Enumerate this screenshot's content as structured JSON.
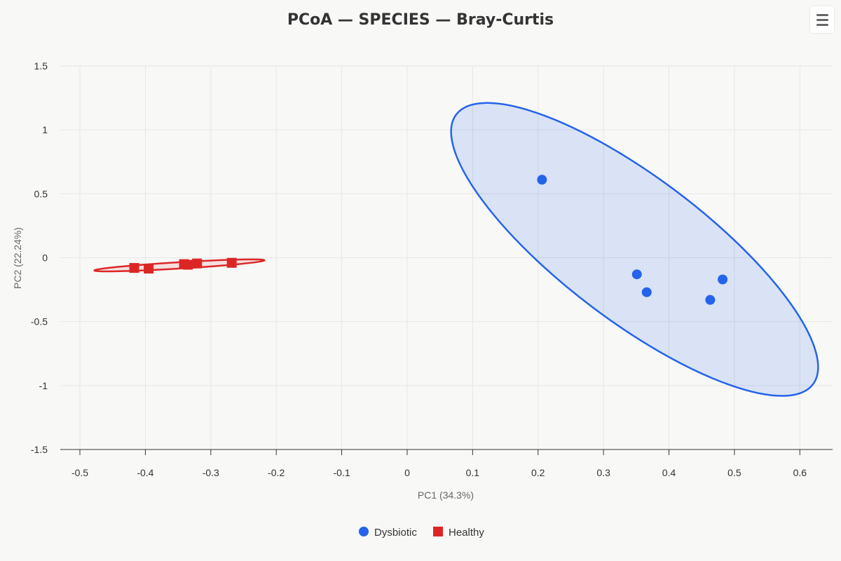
{
  "chart_data": {
    "type": "scatter",
    "title": "PCoA — SPECIES — Bray-Curtis",
    "xlabel": "PC1 (34.3%)",
    "ylabel": "PC2 (22.24%)",
    "xlim": [
      -0.53,
      0.65
    ],
    "ylim": [
      -1.5,
      1.5
    ],
    "xticks": [
      "-0.5",
      "-0.4",
      "-0.3",
      "-0.2",
      "-0.1",
      "0",
      "0.1",
      "0.2",
      "0.3",
      "0.4",
      "0.5",
      "0.6"
    ],
    "yticks": [
      "1.5",
      "1",
      "0.5",
      "0",
      "-0.5",
      "-1",
      "-1.5"
    ],
    "grid": true,
    "legend_position": "bottom-center",
    "series": [
      {
        "name": "Dysbiotic",
        "marker": "circle",
        "color": "#2563eb",
        "points": [
          {
            "x": 0.206,
            "y": 0.61
          },
          {
            "x": 0.351,
            "y": -0.13
          },
          {
            "x": 0.366,
            "y": -0.27
          },
          {
            "x": 0.463,
            "y": -0.33
          },
          {
            "x": 0.482,
            "y": -0.17
          }
        ],
        "ellipse": {
          "points": [
            [
              0.075,
              1.12
            ],
            [
              0.2,
              0.82
            ],
            [
              0.46,
              -0.48
            ],
            [
              0.62,
              -0.99
            ],
            [
              0.3,
              -0.02
            ]
          ]
        }
      },
      {
        "name": "Healthy",
        "marker": "square",
        "color": "#dc2626",
        "points": [
          {
            "x": -0.417,
            "y": -0.08
          },
          {
            "x": -0.395,
            "y": -0.085
          },
          {
            "x": -0.341,
            "y": -0.05
          },
          {
            "x": -0.335,
            "y": -0.055
          },
          {
            "x": -0.321,
            "y": -0.045
          },
          {
            "x": -0.268,
            "y": -0.04
          }
        ],
        "ellipse": {
          "points": [
            [
              -0.478,
              -0.1
            ],
            [
              -0.35,
              -0.075
            ],
            [
              -0.218,
              -0.02
            ],
            [
              -0.34,
              -0.045
            ]
          ]
        }
      }
    ]
  },
  "toolbar": {
    "menu_icon": "hamburger-menu-icon"
  }
}
